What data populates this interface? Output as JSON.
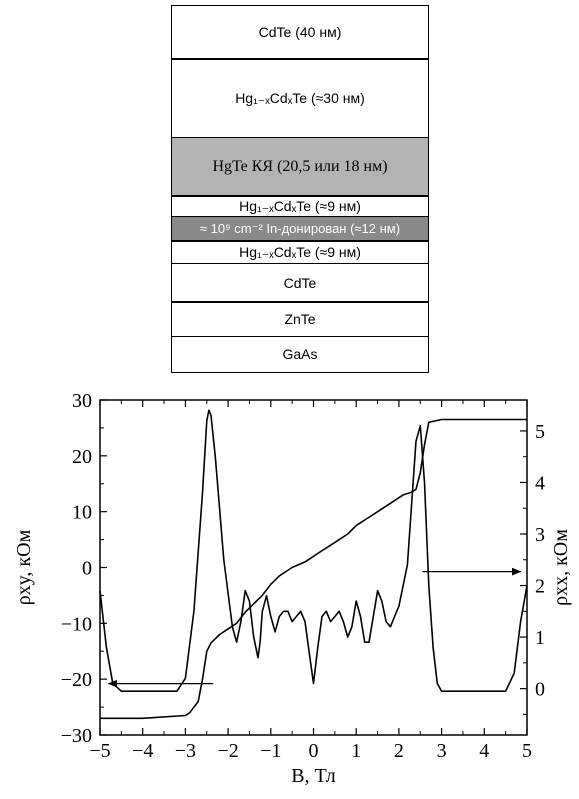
{
  "layers": [
    {
      "text": "CdTe (40 нм)",
      "style": "white"
    },
    {
      "text": "Hg₁₋ₓCdₓTe (≈30 нм)",
      "style": "white"
    },
    {
      "text": "HgTe КЯ (20,5 или 18 нм)",
      "style": "gray"
    },
    {
      "text": "Hg₁₋ₓCdₓTe (≈9 нм)",
      "style": "white"
    },
    {
      "text": "≈ 10⁹ cm⁻² In-донирован (≈12 нм)",
      "style": "dark"
    },
    {
      "text": "Hg₁₋ₓCdₓTe (≈9 нм)",
      "style": "white"
    },
    {
      "text": "CdTe",
      "style": "white"
    },
    {
      "text": "ZnTe",
      "style": "white"
    },
    {
      "text": "GaAs",
      "style": "white"
    }
  ],
  "chart_data": {
    "type": "line",
    "xlabel": "B, Тл",
    "ylabel_left": "ρxy, кОм",
    "ylabel_right": "ρxx, кОм",
    "xlim": [
      -5,
      5
    ],
    "ylim_left": [
      -30,
      30
    ],
    "ylim_right": [
      -0.9,
      5.6
    ],
    "x_ticks": [
      "−5",
      "−4",
      "−3",
      "−2",
      "−1",
      "0",
      "1",
      "2",
      "3",
      "4",
      "5"
    ],
    "y_left_ticks": [
      "30",
      "20",
      "10",
      "0",
      "−10",
      "−20",
      "−30"
    ],
    "y_right_ticks": [
      "5",
      "4",
      "3",
      "2",
      "1",
      "0"
    ],
    "series": [
      {
        "axis": "left",
        "x": [
          -5,
          -4,
          -3,
          -2.9,
          -2.7,
          -2.6,
          -2.5,
          -2.4,
          -2.2,
          -2,
          -1.8,
          -1.6,
          -1.4,
          -1.2,
          -1,
          -0.8,
          -0.5,
          -0.2,
          0,
          0.2,
          0.5,
          0.8,
          1,
          1.2,
          1.4,
          1.6,
          1.8,
          2,
          2.1,
          2.3,
          2.4,
          2.5,
          2.6,
          2.7,
          3,
          4,
          5
        ],
        "y": [
          -27,
          -27,
          -26.5,
          -26,
          -24,
          -20,
          -15,
          -13.5,
          -12,
          -11,
          -10,
          -8,
          -6.5,
          -5,
          -3,
          -1.5,
          0,
          1,
          2,
          3,
          4.5,
          6,
          7.5,
          8.5,
          9.5,
          10.5,
          11.5,
          12.5,
          13,
          13.5,
          14,
          17,
          22,
          26,
          26.5,
          26.5,
          26.5
        ]
      },
      {
        "axis": "right",
        "x": [
          -5,
          -4.85,
          -4.7,
          -4.5,
          -3.2,
          -3,
          -2.8,
          -2.6,
          -2.5,
          -2.45,
          -2.4,
          -2.3,
          -2.1,
          -1.9,
          -1.8,
          -1.7,
          -1.6,
          -1.5,
          -1.4,
          -1.3,
          -1.25,
          -1.2,
          -1.1,
          -1,
          -0.9,
          -0.8,
          -0.7,
          -0.6,
          -0.5,
          -0.4,
          -0.3,
          -0.2,
          -0.1,
          0,
          0.1,
          0.2,
          0.3,
          0.4,
          0.5,
          0.6,
          0.7,
          0.8,
          0.9,
          1,
          1.1,
          1.2,
          1.3,
          1.4,
          1.5,
          1.6,
          1.7,
          1.8,
          1.9,
          2,
          2.2,
          2.3,
          2.4,
          2.5,
          2.6,
          2.7,
          2.8,
          2.9,
          3,
          3.2,
          4.5,
          4.7,
          4.85,
          5
        ],
        "y": [
          1.9,
          0.8,
          0.1,
          -0.05,
          -0.05,
          0.2,
          1.5,
          3.8,
          5.2,
          5.4,
          5.3,
          4.5,
          2.5,
          1.2,
          0.9,
          1.3,
          1.9,
          1.7,
          1.0,
          0.6,
          0.9,
          1.5,
          1.8,
          1.4,
          1.1,
          1.4,
          1.5,
          1.5,
          1.3,
          1.4,
          1.5,
          1.3,
          0.7,
          0.1,
          0.8,
          1.4,
          1.5,
          1.3,
          1.4,
          1.5,
          1.3,
          1.0,
          1.2,
          1.7,
          1.4,
          0.9,
          0.9,
          1.4,
          1.9,
          1.7,
          1.3,
          1.2,
          1.4,
          1.6,
          2.4,
          3.6,
          4.8,
          5.1,
          4.0,
          2.0,
          0.8,
          0.1,
          -0.05,
          -0.05,
          -0.05,
          0.3,
          1.3,
          2.0
        ]
      }
    ]
  }
}
